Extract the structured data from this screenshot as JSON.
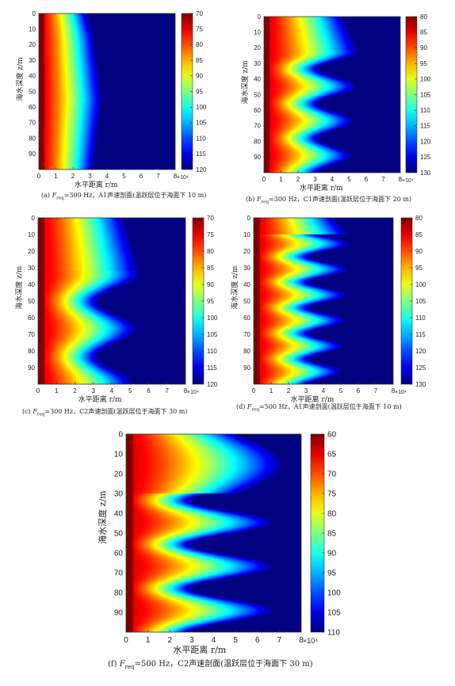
{
  "chart_data": [
    {
      "type": "heatmap",
      "caption": {
        "prefix": "(a) ",
        "f": "F",
        "sub": "req",
        "rest": "=300 Hz，A1声速剖面(温跃层位于海面下 10 m)"
      },
      "xlabel": "水平距离 r/m",
      "ylabel": "海水深度 z/m",
      "xticks": [
        "0",
        "1",
        "2",
        "3",
        "4",
        "5",
        "6",
        "7",
        "8"
      ],
      "yticks": [
        "0",
        "10",
        "20",
        "30",
        "40",
        "50",
        "60",
        "70",
        "80",
        "90"
      ],
      "xlim": [
        0,
        80000
      ],
      "ylim": [
        0,
        100
      ],
      "x_multiplier": "×10⁴",
      "colorbar": {
        "ticks": [
          "70",
          "75",
          "80",
          "85",
          "90",
          "95",
          "100",
          "105",
          "110",
          "115",
          "120"
        ],
        "min": 70,
        "max": 120
      },
      "rings": 0,
      "thermocline_depth_m": 10
    },
    {
      "type": "heatmap",
      "caption": {
        "prefix": "(b) ",
        "f": "F",
        "sub": "req",
        "rest": "=300 Hz，C1声速剖面(温跃层位于海面下 20 m)"
      },
      "xlabel": "水平距离 r/m",
      "ylabel": "海水深度 z/m",
      "xticks": [
        "0",
        "1",
        "2",
        "3",
        "4",
        "5",
        "6",
        "7",
        "8"
      ],
      "yticks": [
        "0",
        "10",
        "20",
        "30",
        "40",
        "50",
        "60",
        "70",
        "80",
        "90"
      ],
      "xlim": [
        0,
        80000
      ],
      "ylim": [
        0,
        100
      ],
      "x_multiplier": "×10⁴",
      "colorbar": {
        "ticks": [
          "80",
          "85",
          "90",
          "95",
          "100",
          "105",
          "110",
          "115",
          "120",
          "125",
          "130"
        ],
        "min": 80,
        "max": 130
      },
      "rings": 8,
      "thermocline_depth_m": 20
    },
    {
      "type": "heatmap",
      "caption": {
        "prefix": "(c) ",
        "f": "F",
        "sub": "req",
        "rest": "=300 Hz，C2声速剖面(温跃层位于海面下 30 m)"
      },
      "xlabel": "水平距离 r/m",
      "ylabel": "海水深度 z/m",
      "xticks": [
        "0",
        "1",
        "2",
        "3",
        "4",
        "5",
        "6",
        "7",
        "8"
      ],
      "yticks": [
        "0",
        "10",
        "20",
        "30",
        "40",
        "50",
        "60",
        "70",
        "80",
        "90"
      ],
      "xlim": [
        0,
        80000
      ],
      "ylim": [
        0,
        100
      ],
      "x_multiplier": "×10⁴",
      "colorbar": {
        "ticks": [
          "70",
          "75",
          "80",
          "85",
          "90",
          "95",
          "100",
          "105",
          "110",
          "115",
          "120"
        ],
        "min": 70,
        "max": 120
      },
      "rings": 5,
      "thermocline_depth_m": 30
    },
    {
      "type": "heatmap",
      "caption": {
        "prefix": "(d) ",
        "f": "F",
        "sub": "req",
        "rest": "=500 Hz，A1声速剖面(温跃层位于海面下 10 m)"
      },
      "xlabel": "水平距离 r/m",
      "ylabel": "海水深度 z/m",
      "xticks": [
        "0",
        "1",
        "2",
        "3",
        "4",
        "5",
        "6",
        "7",
        "8"
      ],
      "yticks": [
        "0",
        "10",
        "20",
        "30",
        "40",
        "50",
        "60",
        "70",
        "80",
        "90"
      ],
      "xlim": [
        0,
        80000
      ],
      "ylim": [
        0,
        100
      ],
      "x_multiplier": "×10⁴",
      "colorbar": {
        "ticks": [
          "80",
          "85",
          "90",
          "95",
          "100",
          "105",
          "110",
          "115",
          "120",
          "125",
          "130"
        ],
        "min": 80,
        "max": 130
      },
      "rings": 12,
      "thermocline_depth_m": 10
    },
    {
      "type": "heatmap",
      "caption": {
        "prefix": "(f) ",
        "f": "F",
        "sub": "req",
        "rest": "=500 Hz，C2声速剖面(温跃层位于海面下 30 m)"
      },
      "xlabel": "水平距离 r/m",
      "ylabel": "海水深度 z/m",
      "xticks": [
        "0",
        "1",
        "2",
        "3",
        "4",
        "5",
        "6",
        "7",
        "8"
      ],
      "yticks": [
        "0",
        "10",
        "20",
        "30",
        "40",
        "50",
        "60",
        "70",
        "80",
        "90"
      ],
      "xlim": [
        0,
        80000
      ],
      "ylim": [
        0,
        100
      ],
      "x_multiplier": "×10⁴",
      "colorbar": {
        "ticks": [
          "60",
          "65",
          "70",
          "75",
          "80",
          "85",
          "90",
          "95",
          "100",
          "105",
          "110"
        ],
        "min": 60,
        "max": 110
      },
      "rings": 8,
      "thermocline_depth_m": 30
    }
  ]
}
